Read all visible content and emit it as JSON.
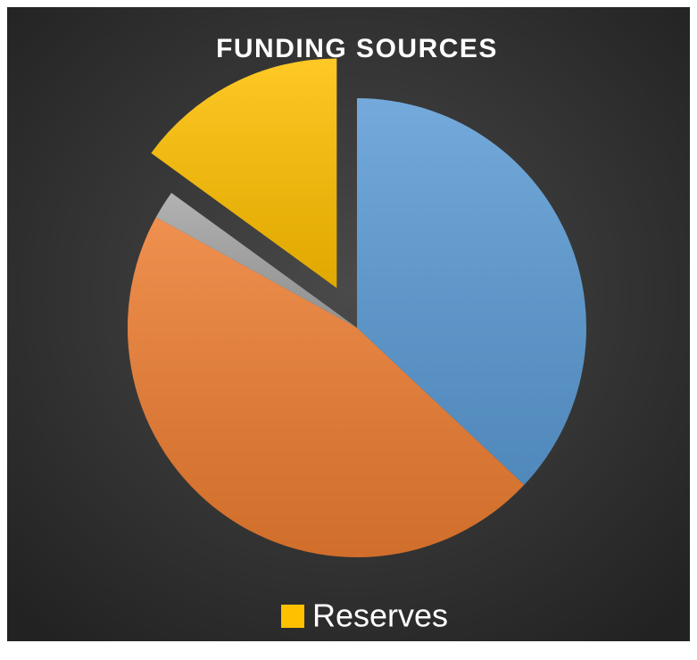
{
  "chart_data": {
    "type": "pie",
    "title": "FUNDING SOURCES",
    "categories": [
      null,
      null,
      null,
      "Reserves"
    ],
    "values": [
      37,
      46,
      2,
      15
    ],
    "colors": [
      "#5b9bd5",
      "#ed7d31",
      "#a5a5a5",
      "#ffc000"
    ],
    "legend": "bottom"
  }
}
